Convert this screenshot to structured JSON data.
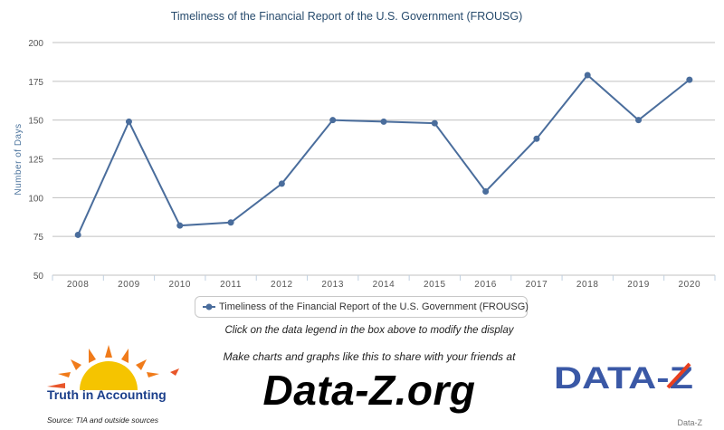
{
  "chart_data": {
    "type": "line",
    "title": "Timeliness of the Financial Report of the U.S. Government (FROUSG)",
    "xlabel": "",
    "ylabel": "Number of Days",
    "x": [
      "2008",
      "2009",
      "2010",
      "2011",
      "2012",
      "2013",
      "2014",
      "2015",
      "2016",
      "2017",
      "2018",
      "2019",
      "2020"
    ],
    "ylim": [
      50,
      200
    ],
    "yticks": [
      50,
      75,
      100,
      125,
      150,
      175,
      200
    ],
    "grid": true,
    "series": [
      {
        "name": "Timeliness of the Financial Report of the U.S. Government (FROUSG)",
        "color": "#4a6d9c",
        "values": [
          76,
          149,
          82,
          84,
          109,
          150,
          149,
          148,
          104,
          138,
          179,
          150,
          176
        ]
      }
    ],
    "legend": "bottom-center"
  },
  "hint_text": "Click on the data legend in the box above to modify the display",
  "share_text": "Make charts and graphs like this to share with your friends at",
  "brand_text": "Data-Z.org",
  "tia_label": "Truth in Accounting",
  "source_text": "Source: TIA and outside sources",
  "dz_logo_text": "DATA-Z",
  "watermark_text": "Data-Z"
}
